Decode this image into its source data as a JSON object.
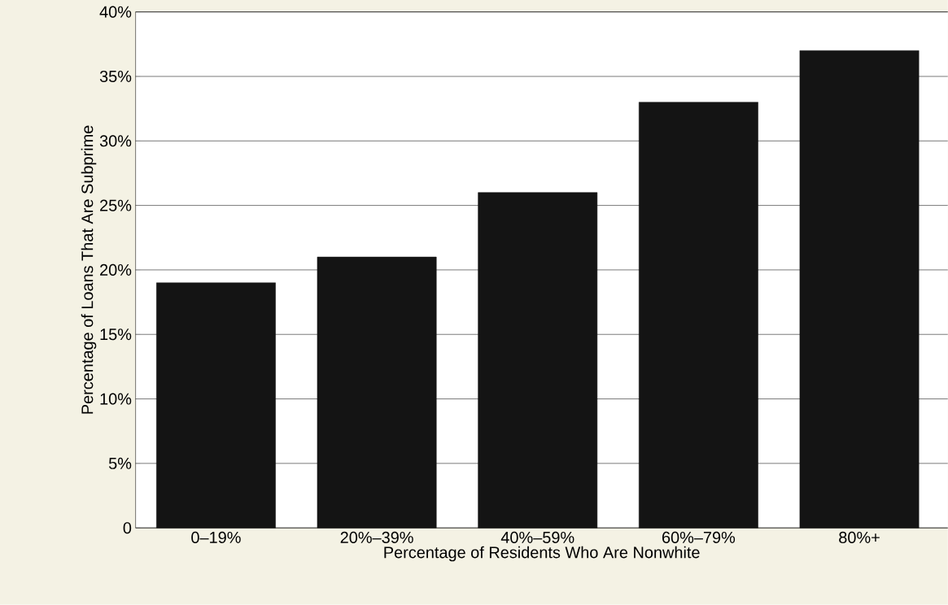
{
  "chart_data": {
    "type": "bar",
    "xlabel": "Percentage of Residents Who Are Nonwhite",
    "ylabel": "Percentage of Loans That Are Subprime",
    "categories": [
      "0–19%",
      "20%–39%",
      "40%–59%",
      "60%–79%",
      "80%+"
    ],
    "values": [
      19,
      21,
      26,
      33,
      37
    ],
    "color": "#141414",
    "ylim": [
      0,
      40
    ],
    "yticks": [
      0,
      {
        "value": 5,
        "label": "5%"
      },
      {
        "value": 10,
        "label": "10%"
      },
      {
        "value": 15,
        "label": "15%"
      },
      {
        "value": 20,
        "label": "20%"
      },
      {
        "value": 25,
        "label": "25%"
      },
      {
        "value": 30,
        "label": "30%"
      },
      {
        "value": 35,
        "label": "35%"
      },
      {
        "value": 40,
        "label": "40%"
      }
    ],
    "grid": "y"
  }
}
